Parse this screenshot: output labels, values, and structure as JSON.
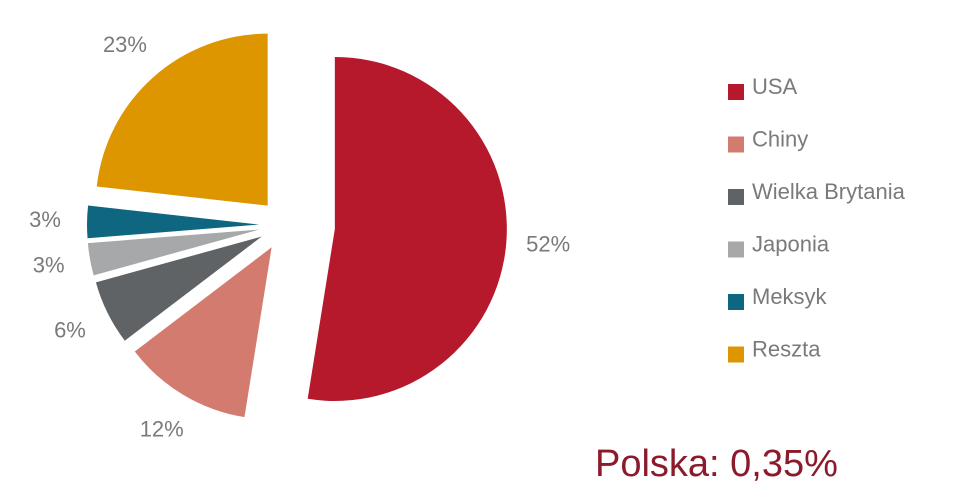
{
  "chart_data": {
    "type": "pie",
    "categories": [
      "USA",
      "Chiny",
      "Wielka Brytania",
      "Japonia",
      "Meksyk",
      "Reszta"
    ],
    "values": [
      52,
      12,
      6,
      3,
      3,
      23
    ],
    "value_labels": [
      "52%",
      "12%",
      "6%",
      "3%",
      "3%",
      "23%"
    ],
    "colors": [
      "#b5192b",
      "#d47b70",
      "#5f6365",
      "#a6a8aa",
      "#0e6680",
      "#dd9500"
    ],
    "legend": "right",
    "annotation": "Polska: 0,35%"
  }
}
